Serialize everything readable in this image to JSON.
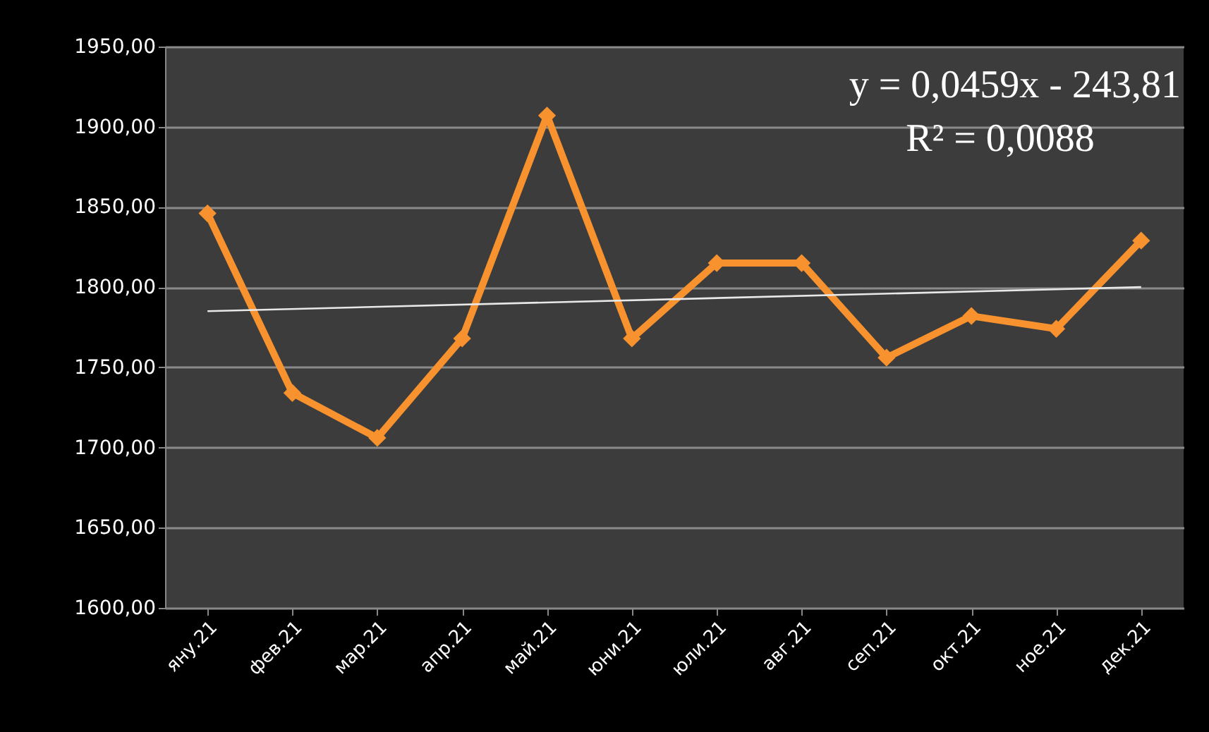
{
  "chart_data": {
    "type": "line",
    "categories": [
      "яну.21",
      "фев.21",
      "мар.21",
      "апр.21",
      "май.21",
      "юни.21",
      "юли.21",
      "авг.21",
      "сеп.21",
      "окт.21",
      "ное.21",
      "дек.21"
    ],
    "series": [
      {
        "color": "#f7922f",
        "values": [
          1846,
          1734,
          1706,
          1768,
          1907,
          1768,
          1815,
          1815,
          1756,
          1782,
          1774,
          1829
        ]
      },
      {
        "type": "line",
        "color": "#e8e8e8",
        "marker": "none",
        "x": [
          "яну.21",
          "дек.21"
        ],
        "values": [
          1785,
          1800
        ]
      }
    ],
    "ylim": [
      1600,
      1950
    ],
    "yticks": [
      {
        "value": 1600,
        "label": "1600,00"
      },
      {
        "value": 1650,
        "label": "1650,00"
      },
      {
        "value": 1700,
        "label": "1700,00"
      },
      {
        "value": 1750,
        "label": "1750,00"
      },
      {
        "value": 1800,
        "label": "1800,00"
      },
      {
        "value": 1850,
        "label": "1850,00"
      },
      {
        "value": 1900,
        "label": "1900,00"
      },
      {
        "value": 1950,
        "label": "1950,00"
      }
    ],
    "grid": "y",
    "marker": "diamond",
    "annotations": [
      "y = 0,0459x - 243,81",
      "R² = 0,0088"
    ]
  }
}
